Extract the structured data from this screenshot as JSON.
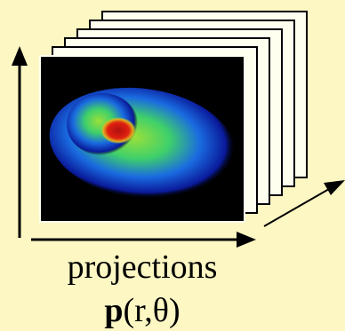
{
  "caption": "projections",
  "formula": {
    "symbol": "p",
    "args": "(r,θ)"
  }
}
